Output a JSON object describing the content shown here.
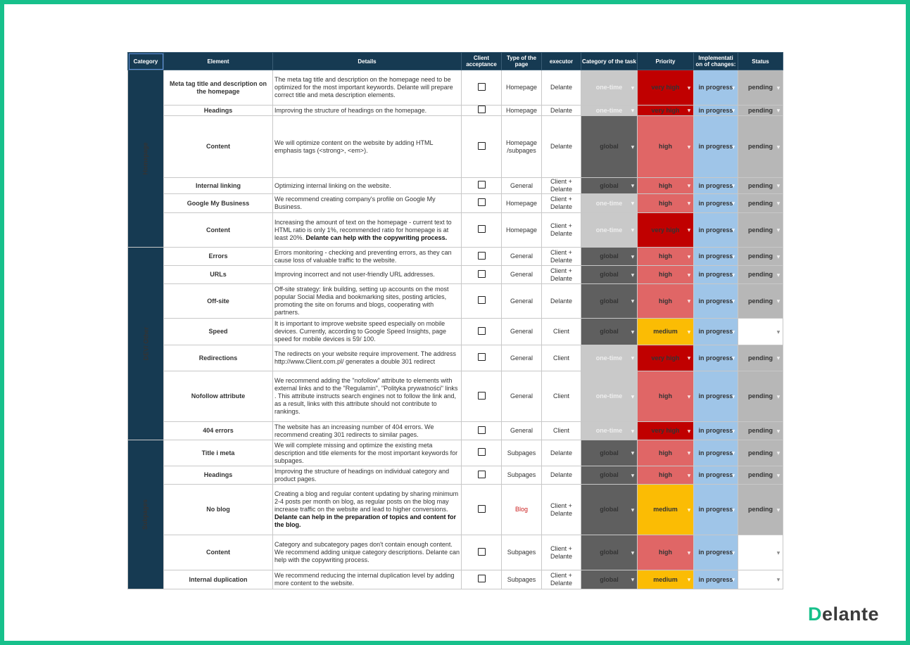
{
  "headers": [
    "Category",
    "Element",
    "Details",
    "Client acceptance",
    "Type of the page",
    "executor",
    "Category of the task",
    "Priority",
    "Implementati on of changes:",
    "Status"
  ],
  "categories": [
    "Homepage",
    "DEV/ Other",
    "Subpages"
  ],
  "rows": [
    {
      "element": "Meta tag title and description on the homepage",
      "details": "The meta tag title and description on the homepage need to be optimized for the most important keywords. Delante will prepare correct title and meta description elements.",
      "page": "Homepage",
      "executor": "Delante",
      "task": "one-time",
      "priority": "very high",
      "impl": "in progress",
      "status": "pending"
    },
    {
      "element": "Headings",
      "details": "Improving the structure of headings on the homepage.",
      "page": "Homepage",
      "executor": "Delante",
      "task": "one-time",
      "priority": "very high",
      "impl": "in progress",
      "status": "pending"
    },
    {
      "element": "Content",
      "details": "We will optimize content on the website by adding HTML emphasis tags (<strong>, <em>).",
      "page": "Homepage /subpages",
      "executor": "Delante",
      "task": "global",
      "priority": "high",
      "impl": "in progress",
      "status": "pending"
    },
    {
      "element": "Internal linking",
      "details": "Optimizing internal linking on the website.",
      "page": "General",
      "executor": "Client + Delante",
      "task": "global",
      "priority": "high",
      "impl": "in progress",
      "status": "pending"
    },
    {
      "element": "Google My Business",
      "details": "We recommend creating company's profile on Google My Business.",
      "page": "Homepage",
      "executor": "Client + Delante",
      "task": "one-time",
      "priority": "high",
      "impl": "in progress",
      "status": "pending"
    },
    {
      "element": "Content",
      "details": "Increasing the amount of text on the homepage - current text to HTML ratio is only 1%, recommended ratio for homepage is at least 20%.",
      "details_bold": "Delante can help with the copywriting process.",
      "page": "Homepage",
      "executor": "Client + Delante",
      "task": "one-time",
      "priority": "very high",
      "impl": "in progress",
      "status": "pending"
    },
    {
      "element": "Errors",
      "details": "Errors monitoring - checking and preventing errors, as they can cause loss of valuable traffic to the website.",
      "page": "General",
      "executor": "Client + Delante",
      "task": "global",
      "priority": "high",
      "impl": "in progress",
      "status": "pending"
    },
    {
      "element": "URLs",
      "details": "Improving incorrect and not user-friendly URL addresses.",
      "page": "General",
      "executor": "Client + Delante",
      "task": "global",
      "priority": "high",
      "impl": "in progress",
      "status": "pending"
    },
    {
      "element": "Off-site",
      "details": "Off-site strategy: link building, setting up accounts on the most popular Social Media and bookmarking sites, posting articles, promoting the site on forums and blogs, cooperating with partners.",
      "page": "General",
      "executor": "Delante",
      "task": "global",
      "priority": "high",
      "impl": "in progress",
      "status": "pending"
    },
    {
      "element": "Speed",
      "details": "It is important to improve website speed especially on mobile devices. Currently, according to Google Speed Insights, page speed for mobile devices is 59/ 100.",
      "page": "General",
      "executor": "Client",
      "task": "global",
      "priority": "medium",
      "impl": "in progress",
      "status": ""
    },
    {
      "element": "Redirections",
      "details": "The redirects on your website require improvement. The address http://www.Client.com.pl/ generates a double 301 redirect",
      "page": "General",
      "executor": "Client",
      "task": "one-time",
      "priority": "very high",
      "impl": "in progress",
      "status": "pending"
    },
    {
      "element": "Nofollow attribute",
      "details": "We recommend adding the \"nofollow\" attribute to elements with external links and to the \"Regulamin\", \"Polityka prywatności\" links . This attribute instructs search engines not to follow the link and, as a result, links with this attribute should not contribute to rankings.",
      "page": "General",
      "executor": "Client",
      "task": "one-time",
      "priority": "high",
      "impl": "in progress",
      "status": "pending"
    },
    {
      "element": "404 errors",
      "details": "The website has an increasing number of 404 errors. We recommend creating 301 redirects to similar pages.",
      "page": "General",
      "executor": "Client",
      "task": "one-time",
      "priority": "very high",
      "impl": "in progress",
      "status": "pending"
    },
    {
      "element": "Title i meta",
      "details": "We will complete missing and optimize the existing meta description and title elements for the most important keywords for subpages.",
      "page": "Subpages",
      "executor": "Delante",
      "task": "global",
      "priority": "high",
      "impl": "in progress",
      "status": "pending"
    },
    {
      "element": "Headings",
      "details": "Improving the structure of headings on individual category and product pages.",
      "page": "Subpages",
      "executor": "Delante",
      "task": "global",
      "priority": "high",
      "impl": "in progress",
      "status": "pending"
    },
    {
      "element": "No blog",
      "details": "Creating a blog and regular content updating by sharing minimum 2-4 posts per month on blog, as regular posts on the blog may increase traffic on the website and lead to higher conversions.",
      "details_bold": "Delante can help in the preparation of topics and content for the blog.",
      "page": "Blog",
      "executor": "Client + Delante",
      "task": "global",
      "priority": "medium",
      "impl": "in progress",
      "status": "pending"
    },
    {
      "element": "Content",
      "details": "Category and subcategory pages don't contain enough content. We recommend adding unique category descriptions. Delante can help with the copywriting process.",
      "page": "Subpages",
      "executor": "Client + Delante",
      "task": "global",
      "priority": "high",
      "impl": "in progress",
      "status": ""
    },
    {
      "element": "Internal duplication",
      "details": "We recommend reducing the internal duplication level by adding more content to the website.",
      "page": "Subpages",
      "executor": "Client + Delante",
      "task": "global",
      "priority": "medium",
      "impl": "in progress",
      "status": ""
    }
  ],
  "colors": {
    "frame": "#17c08b",
    "header": "#163a52",
    "one_time": "#c9c9c9",
    "global": "#5f5f5f",
    "very_high": "#c00000",
    "high": "#e06666",
    "medium": "#fbbc04",
    "in_progress": "#9fc5e8",
    "pending": "#b7b7b7"
  },
  "logo": {
    "first": "D",
    "rest": "elante"
  }
}
